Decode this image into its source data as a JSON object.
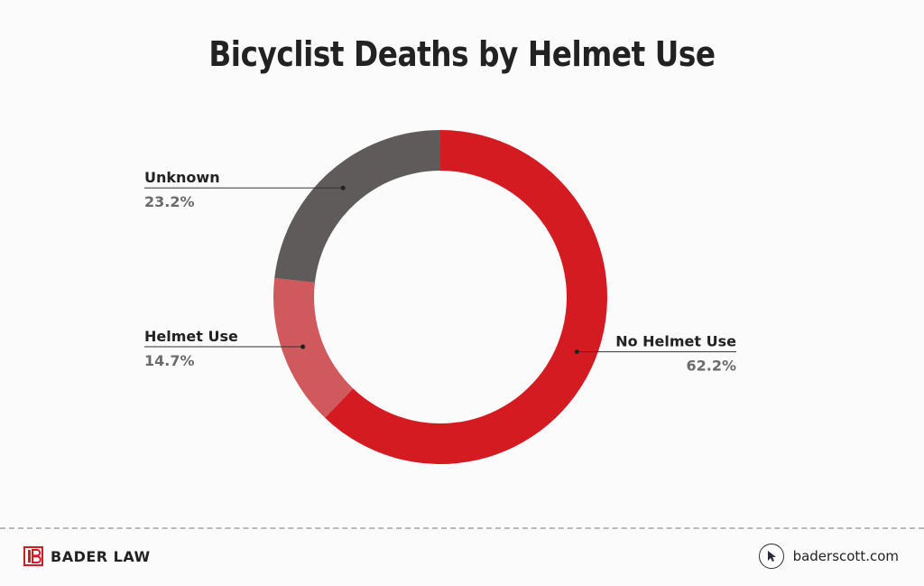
{
  "chart_data": {
    "type": "pie",
    "variant": "donut",
    "title": "Bicyclist Deaths by Helmet Use",
    "slices": [
      {
        "label": "No Helmet Use",
        "value": 62.2,
        "display": "62.2%",
        "color": "#d51b22"
      },
      {
        "label": "Helmet Use",
        "value": 14.7,
        "display": "14.7%",
        "color": "#cf595c"
      },
      {
        "label": "Unknown",
        "value": 23.2,
        "display": "23.2%",
        "color": "#5f5b5a"
      }
    ],
    "start_angle_deg": 0,
    "direction": "clockwise",
    "legend": "callout-labels"
  },
  "footer": {
    "brand": "BADER LAW",
    "website": "baderscott.com",
    "logo_icon": "bader-law-logo-icon",
    "link_icon": "cursor-arrow-icon",
    "brand_color": "#d51b22"
  }
}
